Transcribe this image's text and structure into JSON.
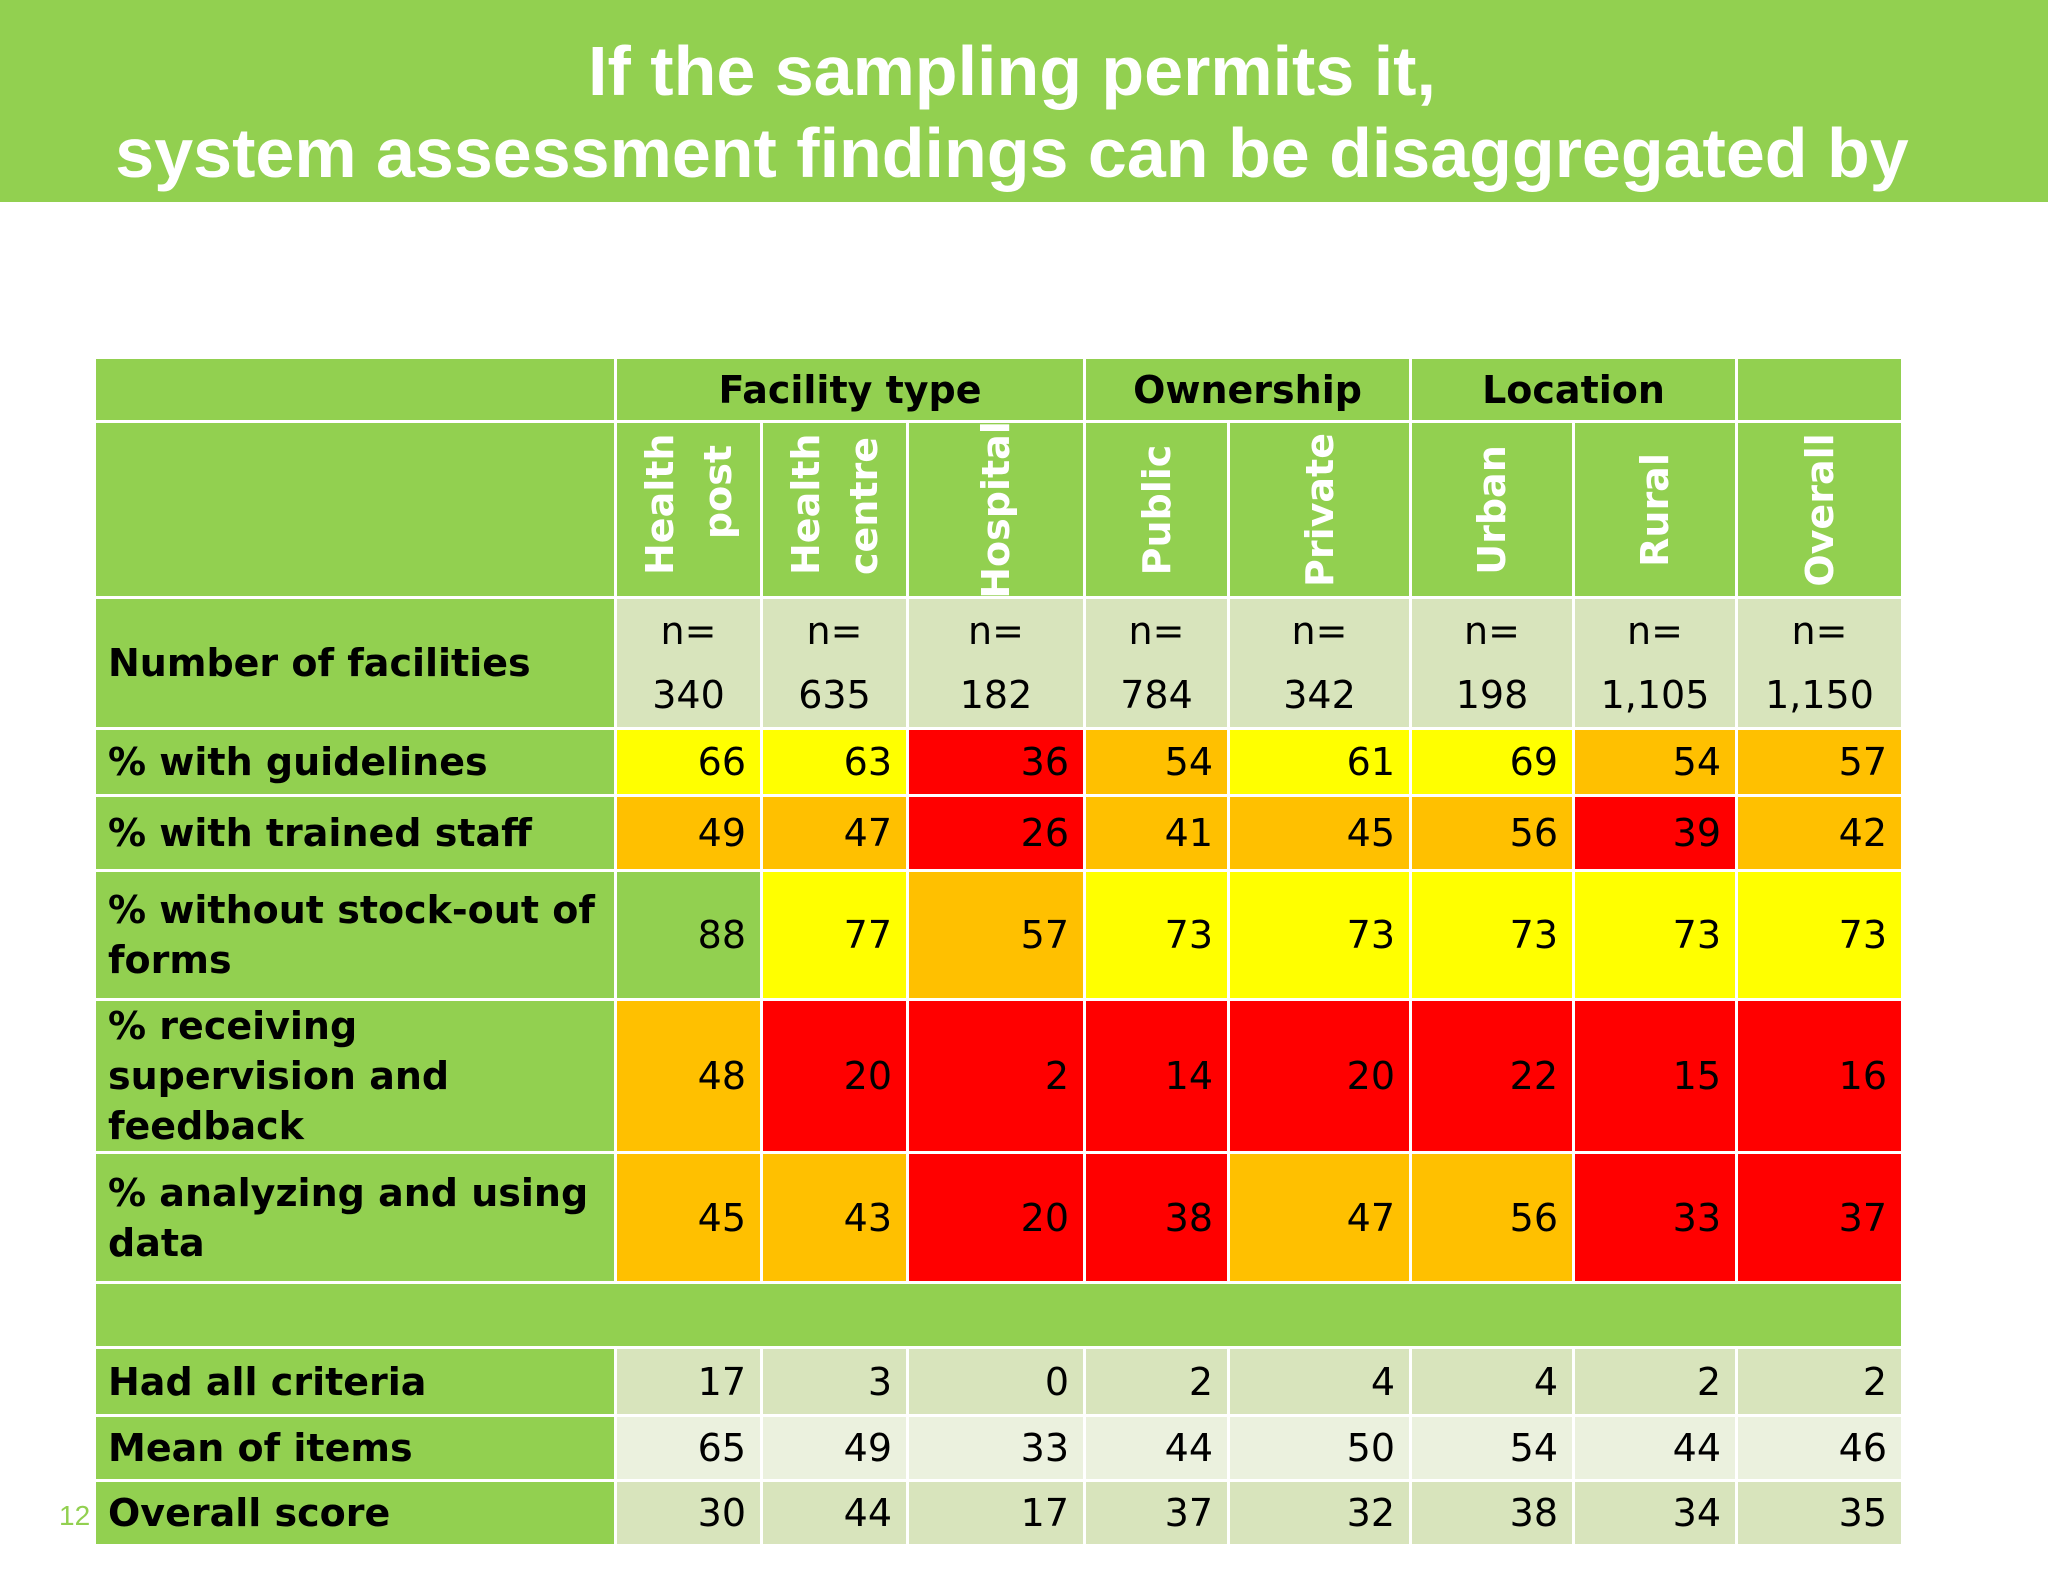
{
  "title": {
    "line1": "If the sampling permits it,",
    "line2": "system assessment findings can be disaggregated by"
  },
  "groups": {
    "facility_type": "Facility type",
    "ownership": "Ownership",
    "location": "Location"
  },
  "columns": [
    "Health post",
    "Health centre",
    "Hospital",
    "Public",
    "Private",
    "Urban",
    "Rural",
    "Overall"
  ],
  "n_label": "n=",
  "n_values": [
    "340",
    "635",
    "182",
    "784",
    "342",
    "198",
    "1,105",
    "1,150"
  ],
  "rows": [
    {
      "label": "Number of facilities"
    },
    {
      "label": "% with guidelines",
      "values": [
        "66",
        "63",
        "36",
        "54",
        "61",
        "69",
        "54",
        "57"
      ],
      "colors": [
        "#ffff00",
        "#ffff00",
        "#ff0000",
        "#ffc000",
        "#ffff00",
        "#ffff00",
        "#ffc000",
        "#ffc000"
      ]
    },
    {
      "label": "% with trained staff",
      "values": [
        "49",
        "47",
        "26",
        "41",
        "45",
        "56",
        "39",
        "42"
      ],
      "colors": [
        "#ffc000",
        "#ffc000",
        "#ff0000",
        "#ffc000",
        "#ffc000",
        "#ffc000",
        "#ff0000",
        "#ffc000"
      ]
    },
    {
      "label": "% without stock-out of forms",
      "values": [
        "88",
        "77",
        "57",
        "73",
        "73",
        "73",
        "73",
        "73"
      ],
      "colors": [
        "#92d050",
        "#ffff00",
        "#ffc000",
        "#ffff00",
        "#ffff00",
        "#ffff00",
        "#ffff00",
        "#ffff00"
      ]
    },
    {
      "label": "% receiving supervision and feedback",
      "values": [
        "48",
        "20",
        "2",
        "14",
        "20",
        "22",
        "15",
        "16"
      ],
      "colors": [
        "#ffc000",
        "#ff0000",
        "#ff0000",
        "#ff0000",
        "#ff0000",
        "#ff0000",
        "#ff0000",
        "#ff0000"
      ]
    },
    {
      "label": "% analyzing and using data",
      "values": [
        "45",
        "43",
        "20",
        "38",
        "47",
        "56",
        "33",
        "37"
      ],
      "colors": [
        "#ffc000",
        "#ffc000",
        "#ff0000",
        "#ff0000",
        "#ffc000",
        "#ffc000",
        "#ff0000",
        "#ff0000"
      ]
    }
  ],
  "summary_rows": [
    {
      "label": "Had all criteria",
      "values": [
        "17",
        "3",
        "0",
        "2",
        "4",
        "4",
        "2",
        "2"
      ],
      "shade": "#d8e4bc"
    },
    {
      "label": "Mean of items",
      "values": [
        "65",
        "49",
        "33",
        "44",
        "50",
        "54",
        "44",
        "46"
      ],
      "shade": "#ebf1de"
    },
    {
      "label": "Overall score",
      "values": [
        "30",
        "44",
        "17",
        "37",
        "32",
        "38",
        "34",
        "35"
      ],
      "shade": "#d8e4bc"
    }
  ],
  "page_number": "12"
}
